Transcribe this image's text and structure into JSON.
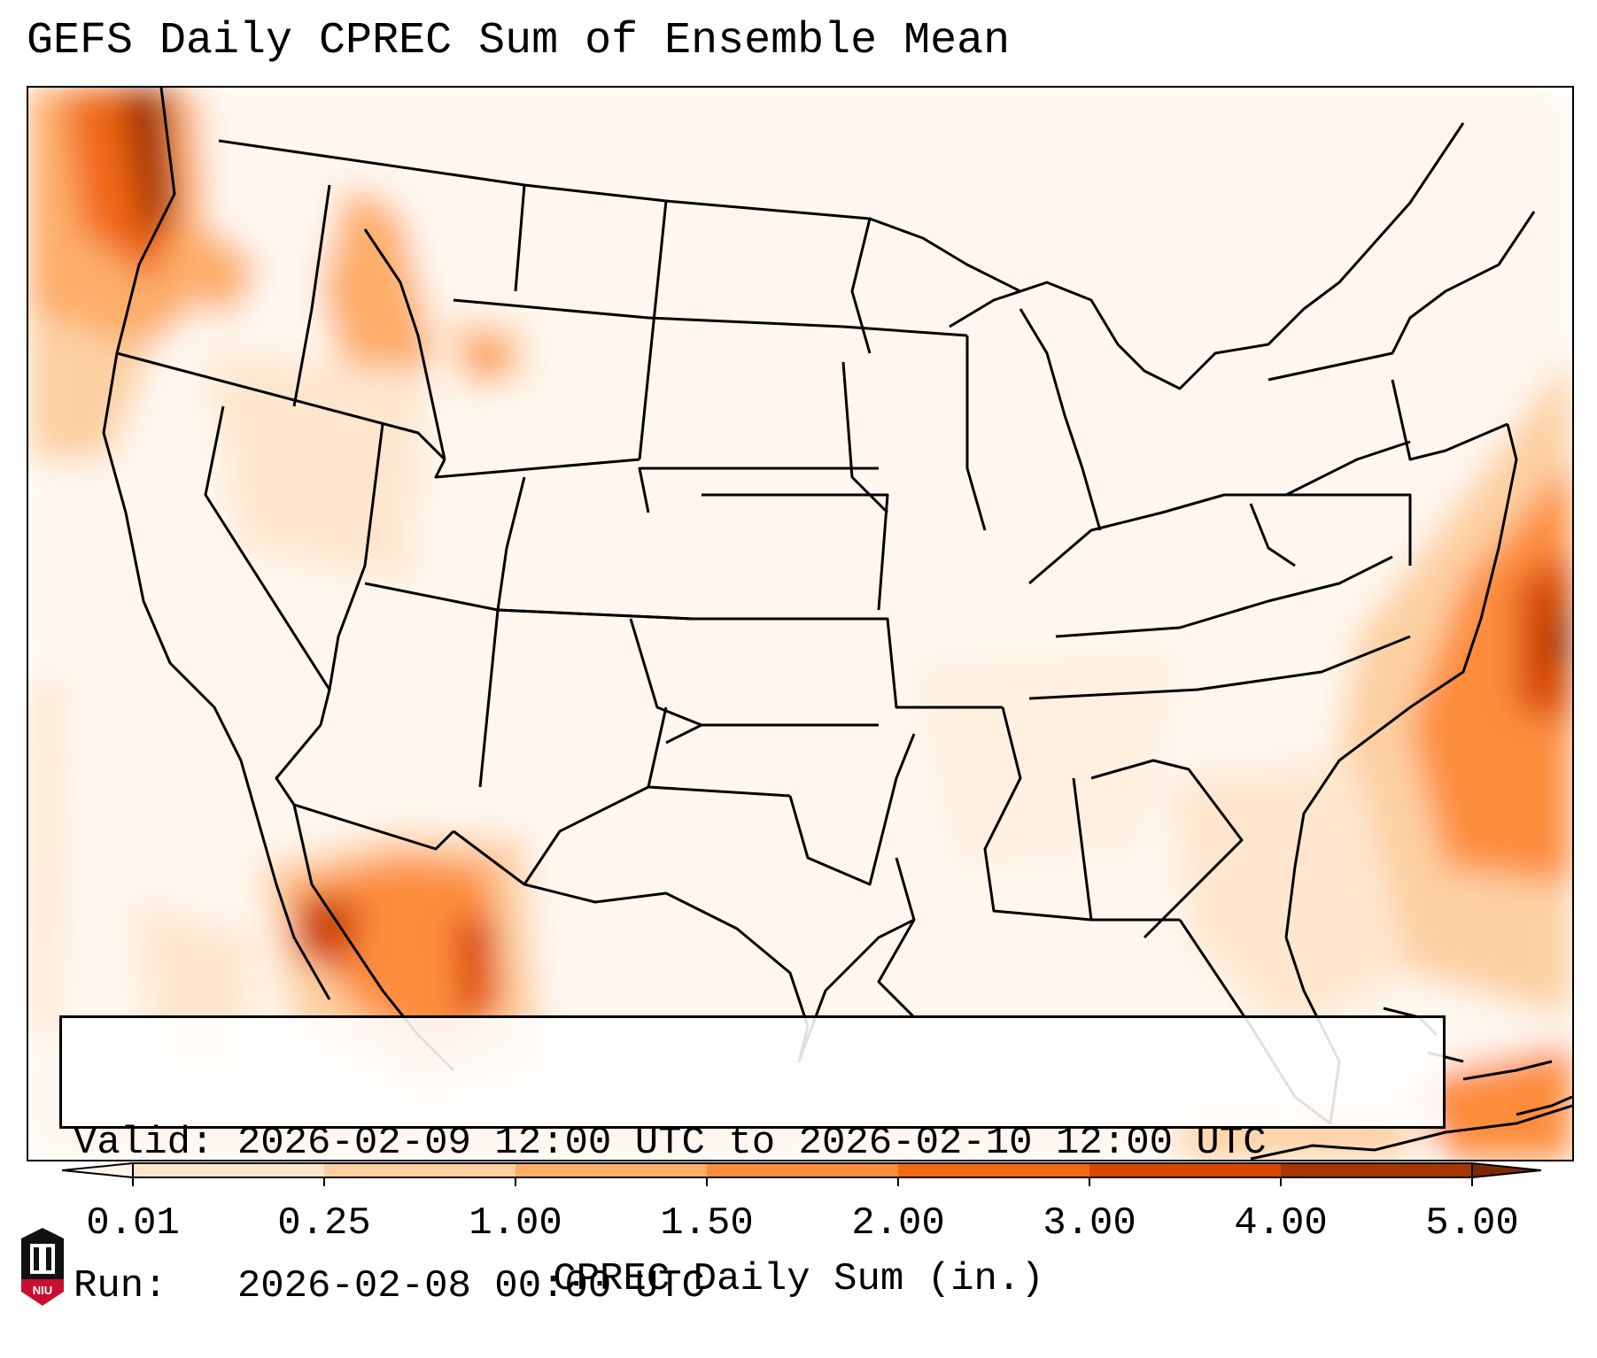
{
  "title": "GEFS Daily CPREC Sum of Ensemble Mean",
  "info": {
    "valid_label": "Valid:",
    "valid_value": "2026-02-09 12:00 UTC to 2026-02-10 12:00 UTC",
    "run_label": "Run:",
    "run_value": "2026-02-08 00:00 UTC"
  },
  "colorbar": {
    "label": "CPREC Daily Sum (in.)",
    "ticks": [
      "0.01",
      "0.25",
      "1.00",
      "1.50",
      "2.00",
      "3.00",
      "4.00",
      "5.00"
    ],
    "colors": [
      "#fff5eb",
      "#fee6ce",
      "#fdd0a2",
      "#fdae6b",
      "#fd8d3c",
      "#f16913",
      "#d94801",
      "#a63603",
      "#7f2704"
    ]
  },
  "logo": {
    "text": "NIU"
  }
}
